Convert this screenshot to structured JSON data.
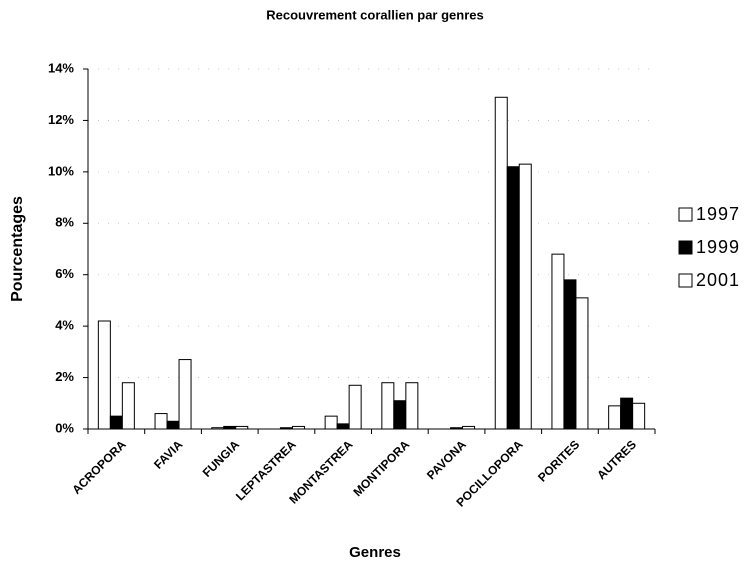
{
  "chart_data": {
    "type": "bar",
    "title": "Recouvrement corallien par genres",
    "x_label": "Genres",
    "y_label": "Pourcentages",
    "categories": [
      "ACROPORA",
      "FAVIA",
      "FUNGIA",
      "LEPTASTREA",
      "MONTASTREA",
      "MONTIPORA",
      "PAVONA",
      "POCILLOPORA",
      "PORITES",
      "AUTRES"
    ],
    "series": [
      {
        "name": "1997",
        "color": "#ffffff",
        "values": [
          4.2,
          0.6,
          0.05,
          0,
          0.5,
          1.8,
          0,
          12.9,
          6.8,
          0.9
        ]
      },
      {
        "name": "1999",
        "color": "#000000",
        "values": [
          0.5,
          0.3,
          0.1,
          0.05,
          0.2,
          1.1,
          0.05,
          10.2,
          5.8,
          1.2
        ]
      },
      {
        "name": "2001",
        "color": "#ffffff",
        "values": [
          1.8,
          2.7,
          0.1,
          0.1,
          1.7,
          1.8,
          0.1,
          10.3,
          5.1,
          1.0
        ]
      }
    ],
    "ylim": [
      0,
      14
    ],
    "yticks": [
      {
        "value": 0,
        "label": "0%"
      },
      {
        "value": 2,
        "label": "2%"
      },
      {
        "value": 4,
        "label": "4%"
      },
      {
        "value": 6,
        "label": "6%"
      },
      {
        "value": 8,
        "label": "8%"
      },
      {
        "value": 10,
        "label": "10%"
      },
      {
        "value": 12,
        "label": "12%"
      },
      {
        "value": 14,
        "label": "14%"
      }
    ],
    "grid": true,
    "legend": "right"
  }
}
